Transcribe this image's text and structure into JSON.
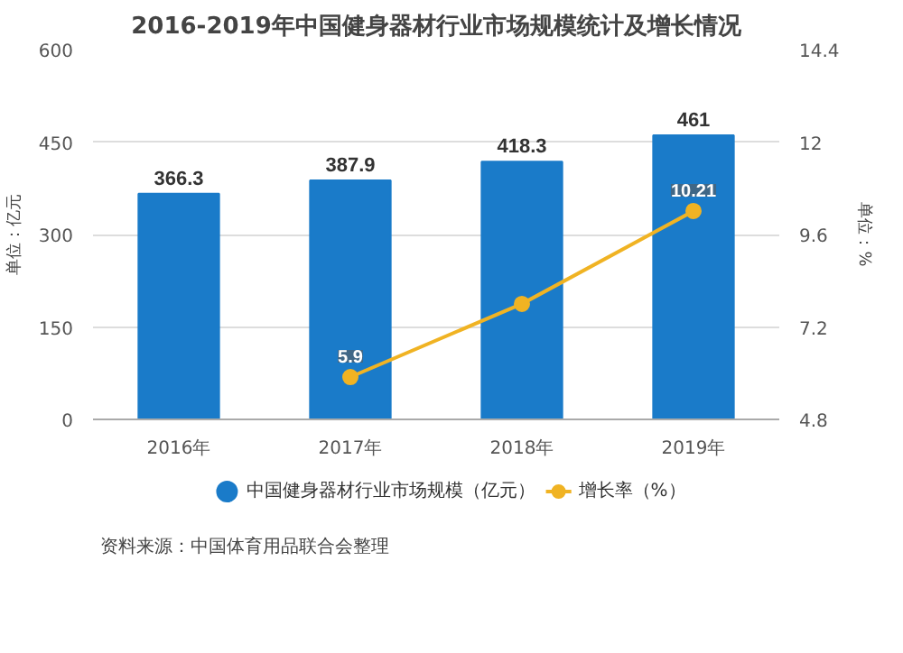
{
  "chart_data": {
    "type": "bar",
    "title": "2016-2019年中国健身器材行业市场规模统计及增长情况",
    "categories": [
      "2016年",
      "2017年",
      "2018年",
      "2019年"
    ],
    "series": [
      {
        "name": "中国健身器材行业市场规模（亿元）",
        "color": "#1a7bc9",
        "values": [
          366.3,
          387.9,
          418.3,
          461
        ],
        "value_labels": [
          "366.3",
          "387.9",
          "418.3",
          "461"
        ]
      },
      {
        "name": "增长率（%）",
        "type": "line",
        "axis": "y2",
        "color": "#f0b323",
        "values": [
          null,
          5.9,
          7.8,
          10.21
        ],
        "value_labels": [
          null,
          "5.9",
          null,
          "10.21"
        ]
      }
    ],
    "ylabel": "单位：亿元",
    "y2label": "单位：%",
    "ylim": [
      0,
      600
    ],
    "yticks": [
      0,
      150,
      300,
      450,
      600
    ],
    "y2lim": [
      4.8,
      14.4
    ],
    "y2ticks": [
      4.8,
      7.2,
      9.6,
      12,
      14.4
    ],
    "grid": "y",
    "legend": "bottom",
    "marker": "circle",
    "annotations": [
      "资料来源：中国体育用品联合会整理"
    ]
  }
}
